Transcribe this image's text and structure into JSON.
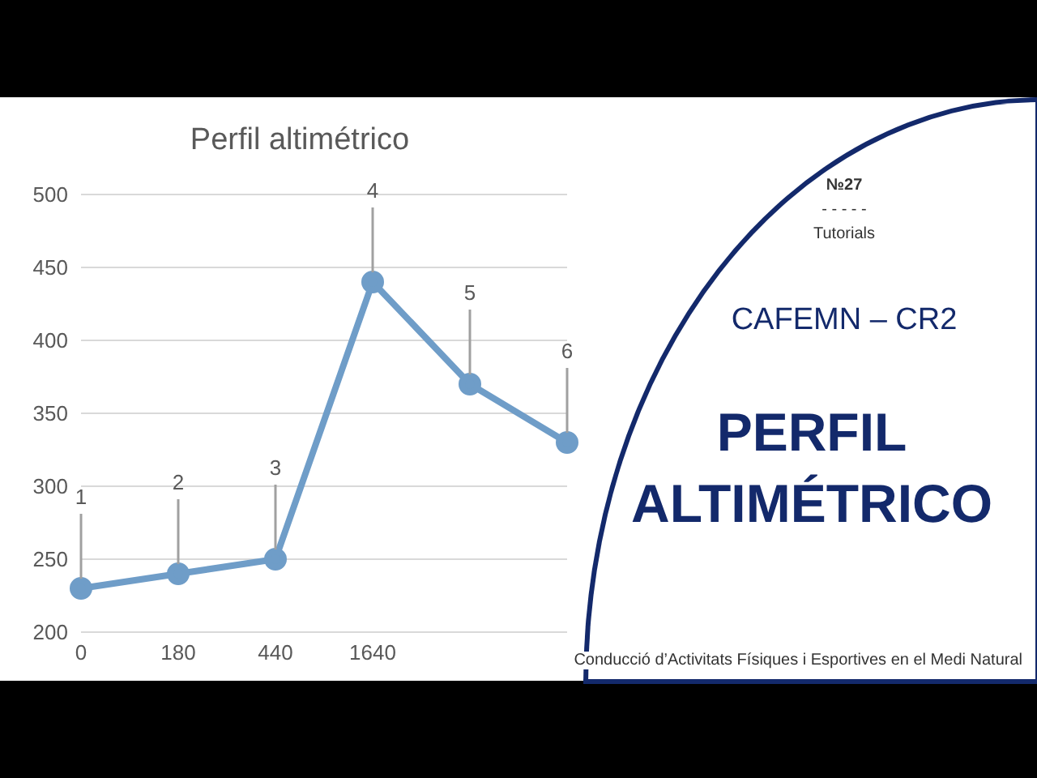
{
  "chart_data": [
    {
      "type": "line",
      "title": "Perfil altimétrico",
      "categories": [
        "0",
        "180",
        "440",
        "1640",
        null,
        null
      ],
      "series": [
        {
          "color": "#6f9dc8",
          "values": [
            230,
            240,
            250,
            440,
            370,
            330
          ]
        }
      ],
      "ylim": [
        200,
        500
      ],
      "yticks": [
        200,
        250,
        300,
        350,
        400,
        450,
        500
      ],
      "grid": "y",
      "marker": "circle",
      "line_style": "solid",
      "legend": false,
      "annotations": [
        {
          "text": "1",
          "x": "0",
          "y": 230
        },
        {
          "text": "2",
          "x": "180",
          "y": 240
        },
        {
          "text": "3",
          "x": "440",
          "y": 250
        },
        {
          "text": "4",
          "x": "1640",
          "y": 440
        },
        {
          "text": "5",
          "y": 370
        },
        {
          "text": "6",
          "y": 330
        }
      ]
    },
    {
      "type": "other",
      "title": "PERFIL ALTIMÉTRICO",
      "subtitle": "CAFEMN – CR2",
      "annotations": [
        "№27",
        "- - - - -",
        "Tutorials",
        "Conducció d’Activitats Físiques i Esportives en el Medi Natural"
      ]
    }
  ]
}
